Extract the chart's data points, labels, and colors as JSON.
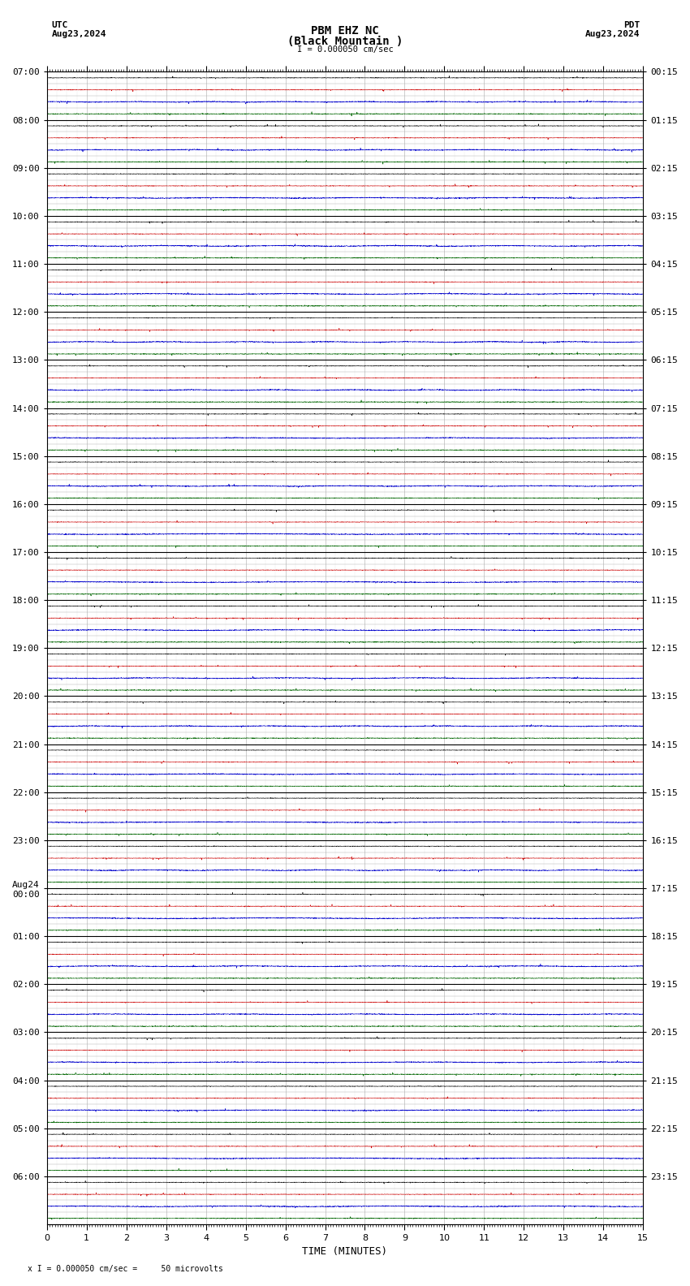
{
  "title_line1": "PBM EHZ NC",
  "title_line2": "(Black Mountain )",
  "scale_text": "I = 0.000050 cm/sec",
  "left_label": "UTC",
  "left_date": "Aug23,2024",
  "right_label": "PDT",
  "right_date": "Aug23,2024",
  "xlabel": "TIME (MINUTES)",
  "footer_text": "x I = 0.000050 cm/sec =     50 microvolts",
  "bg_color": "#ffffff",
  "grid_color": "#aaaaaa",
  "border_color": "#000000",
  "utc_hour_labels": [
    "07:00",
    "08:00",
    "09:00",
    "10:00",
    "11:00",
    "12:00",
    "13:00",
    "14:00",
    "15:00",
    "16:00",
    "17:00",
    "18:00",
    "19:00",
    "20:00",
    "21:00",
    "22:00",
    "23:00",
    "Aug24\n00:00",
    "01:00",
    "02:00",
    "03:00",
    "04:00",
    "05:00",
    "06:00"
  ],
  "pdt_hour_labels": [
    "00:15",
    "01:15",
    "02:15",
    "03:15",
    "04:15",
    "05:15",
    "06:15",
    "07:15",
    "08:15",
    "09:15",
    "10:15",
    "11:15",
    "12:15",
    "13:15",
    "14:15",
    "15:15",
    "16:15",
    "17:15",
    "18:15",
    "19:15",
    "20:15",
    "21:15",
    "22:15",
    "23:15"
  ],
  "num_hours": 24,
  "traces_per_hour": 4,
  "trace_colors": [
    "#000000",
    "#cc0000",
    "#0000cc",
    "#006600"
  ],
  "xmin": 0,
  "xmax": 15,
  "font_size_title": 10,
  "font_size_axis": 9,
  "font_size_tick": 8
}
